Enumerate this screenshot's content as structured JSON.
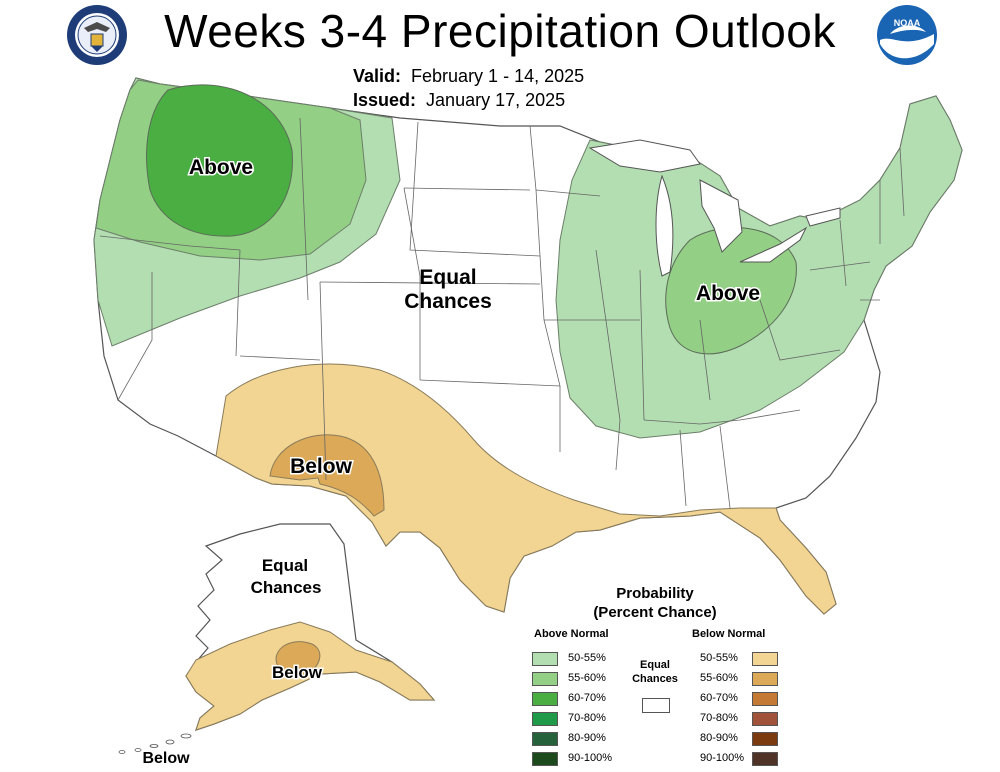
{
  "header": {
    "title": "Weeks 3-4 Precipitation Outlook",
    "valid_label": "Valid:",
    "valid_value": "February 1 - 14, 2025",
    "issued_label": "Issued:",
    "issued_value": "January 17, 2025",
    "left_logo": "doc-seal-icon",
    "right_logo": "noaa-logo-icon"
  },
  "map": {
    "labels": {
      "above_west": "Above",
      "above_east": "Above",
      "equal_1": "Equal",
      "equal_2": "Chances",
      "below_sw": "Below",
      "ak_equal_1": "Equal",
      "ak_equal_2": "Chances",
      "ak_below": "Below",
      "ak_below_sw": "Below"
    }
  },
  "legend": {
    "title_1": "Probability",
    "title_2": "(Percent Chance)",
    "above_header": "Above Normal",
    "below_header": "Below Normal",
    "equal_1": "Equal",
    "equal_2": "Chances",
    "equal_color": "#ffffff",
    "above": [
      {
        "label": "50-55%",
        "color": "#b3deb1"
      },
      {
        "label": "55-60%",
        "color": "#93cf85"
      },
      {
        "label": "60-70%",
        "color": "#4aae43"
      },
      {
        "label": "70-80%",
        "color": "#1e9a48"
      },
      {
        "label": "80-90%",
        "color": "#25613a"
      },
      {
        "label": "90-100%",
        "color": "#1c4a1c"
      }
    ],
    "below": [
      {
        "label": "50-55%",
        "color": "#f2d592"
      },
      {
        "label": "55-60%",
        "color": "#dba957"
      },
      {
        "label": "60-70%",
        "color": "#c47a35"
      },
      {
        "label": "70-80%",
        "color": "#a0533a"
      },
      {
        "label": "80-90%",
        "color": "#7b3b0e"
      },
      {
        "label": "90-100%",
        "color": "#4f3327"
      }
    ]
  }
}
